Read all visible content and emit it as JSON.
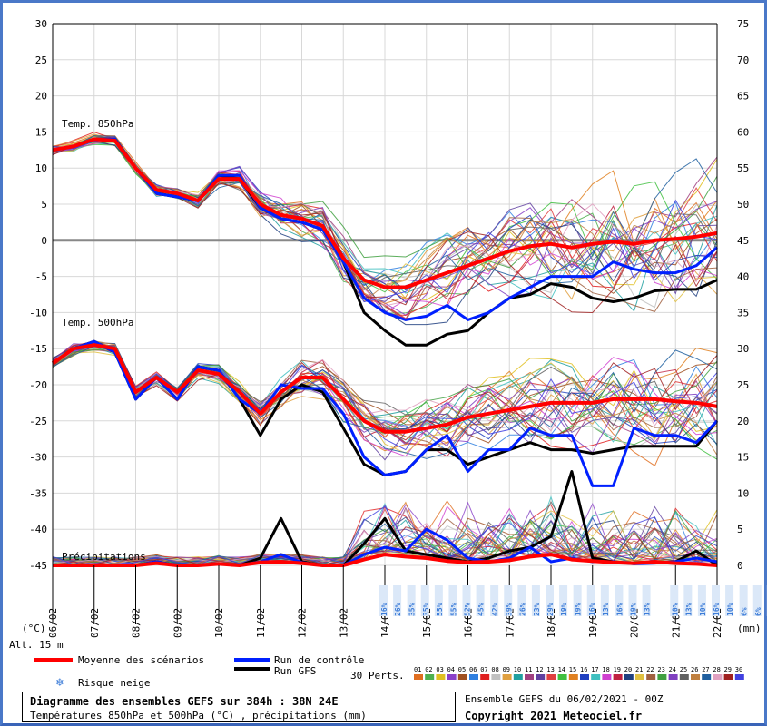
{
  "chart_data": {
    "type": "line",
    "x_tick_labels": [
      "06/02",
      "07/02",
      "08/02",
      "09/02",
      "10/02",
      "11/02",
      "12/02",
      "13/02",
      "14/02",
      "15/02",
      "16/02",
      "17/02",
      "18/02",
      "19/02",
      "20/02",
      "21/02",
      "22/02"
    ],
    "y_left_ticks": [
      30,
      25,
      20,
      15,
      10,
      5,
      0,
      -5,
      -10,
      -15,
      -20,
      -25,
      -30,
      -35,
      -40,
      -45
    ],
    "y_right_ticks": [
      75,
      70,
      65,
      60,
      55,
      50,
      45,
      40,
      35,
      30,
      25,
      20,
      15,
      10,
      5,
      0
    ],
    "y_left_range": [
      -45,
      30
    ],
    "y_right_range": [
      0,
      75
    ],
    "left_unit": "(°C)",
    "right_unit": "(mm)",
    "altitude_label": "Alt. 15 m",
    "panel_labels": {
      "t850": "Temp. 850hPa",
      "t500": "Temp. 500hPa",
      "precip": "Précipitations"
    },
    "t850": {
      "x": [
        0,
        0.5,
        1,
        1.5,
        2,
        2.5,
        3,
        3.5,
        4,
        4.5,
        5,
        5.5,
        6,
        6.5,
        7,
        7.5,
        8,
        8.5,
        9,
        9.5,
        10,
        10.5,
        11,
        11.5,
        12,
        12.5,
        13,
        13.5,
        14,
        14.5,
        15,
        15.5,
        16
      ],
      "mean": [
        12.5,
        13,
        14,
        13.8,
        10,
        7,
        6.5,
        5.5,
        8.5,
        8.5,
        5,
        3.5,
        3,
        2,
        -2.5,
        -5.5,
        -6.5,
        -6.5,
        -5.5,
        -4.5,
        -3.5,
        -2.5,
        -1.5,
        -0.8,
        -0.5,
        -1,
        -0.5,
        -0.2,
        -0.5,
        0,
        0.2,
        0.5,
        1
      ],
      "control": [
        12.5,
        13,
        14,
        14,
        10,
        6.5,
        6,
        5.5,
        9,
        9,
        4.5,
        3,
        2.5,
        1.5,
        -3,
        -8,
        -10,
        -11,
        -10.5,
        -9,
        -11,
        -10,
        -8,
        -6.5,
        -5,
        -5,
        -5,
        -3,
        -4,
        -4.5,
        -4.5,
        -3.5,
        -1
      ],
      "gfs": [
        12.5,
        13,
        14,
        14,
        10,
        6.5,
        6,
        5.5,
        9,
        8.5,
        4.5,
        3,
        2.5,
        1.5,
        -3,
        -10,
        -12.5,
        -14.5,
        -14.5,
        -13,
        -12.5,
        -10,
        -8,
        -7.5,
        -6,
        -6.5,
        -8,
        -8.5,
        -8,
        -7,
        -6.8,
        -6.8,
        -5.5
      ]
    },
    "t500": {
      "x": [
        0,
        0.5,
        1,
        1.5,
        2,
        2.5,
        3,
        3.5,
        4,
        4.5,
        5,
        5.5,
        6,
        6.5,
        7,
        7.5,
        8,
        8.5,
        9,
        9.5,
        10,
        10.5,
        11,
        11.5,
        12,
        12.5,
        13,
        13.5,
        14,
        14.5,
        15,
        15.5,
        16
      ],
      "mean": [
        -17,
        -15,
        -14.5,
        -15,
        -21,
        -19,
        -21,
        -18,
        -18.5,
        -21,
        -24,
        -21,
        -19,
        -19,
        -22,
        -25,
        -26.5,
        -26.5,
        -26,
        -25.5,
        -24.5,
        -24,
        -23.5,
        -23,
        -22.5,
        -22.5,
        -22.5,
        -22,
        -22,
        -22,
        -22.3,
        -22.5,
        -23
      ],
      "control": [
        -17,
        -15,
        -14,
        -15.5,
        -22,
        -19,
        -22,
        -17.5,
        -18,
        -22,
        -24,
        -20,
        -20.5,
        -20.5,
        -24,
        -30,
        -32.5,
        -32,
        -29,
        -27,
        -32,
        -29,
        -29,
        -26,
        -27,
        -27,
        -34,
        -34,
        -26,
        -27,
        -27,
        -28,
        -25
      ],
      "gfs": [
        -17,
        -15,
        -14,
        -15.5,
        -22,
        -19,
        -22,
        -17.5,
        -18,
        -22,
        -27,
        -22,
        -20,
        -21,
        -26,
        -31,
        -32.5,
        -32,
        -29,
        -29,
        -31,
        -30,
        -29,
        -28,
        -29,
        -29,
        -29.5,
        -29,
        -28.5,
        -28.5,
        -28.5,
        -28.5,
        -25
      ]
    },
    "precip": {
      "x": [
        0,
        0.5,
        1,
        1.5,
        2,
        2.5,
        3,
        3.5,
        4,
        4.5,
        5,
        5.5,
        6,
        6.5,
        7,
        7.5,
        8,
        8.5,
        9,
        9.5,
        10,
        10.5,
        11,
        11.5,
        12,
        12.5,
        13,
        13.5,
        14,
        14.5,
        15,
        15.5,
        16
      ],
      "mean": [
        0,
        0,
        0,
        0,
        0,
        0.3,
        0,
        0,
        0.2,
        0,
        0.4,
        0.5,
        0.3,
        0,
        0,
        0.8,
        1.5,
        1.2,
        1,
        0.6,
        0.4,
        0.5,
        0.7,
        1.2,
        1.5,
        0.8,
        0.6,
        0.4,
        0.3,
        0.5,
        0.3,
        0.2,
        0
      ],
      "control": [
        0,
        0,
        0,
        0,
        0,
        0.5,
        0,
        0,
        0.2,
        0,
        0.5,
        1.5,
        0.4,
        0,
        0,
        1.5,
        2.5,
        2,
        5,
        3.5,
        1,
        0.5,
        1,
        2.5,
        0.5,
        1,
        0.5,
        0.5,
        0.2,
        0.3,
        0.5,
        1,
        0.5
      ],
      "gfs": [
        0,
        0,
        0,
        0,
        0,
        0.5,
        0,
        0,
        0.2,
        0,
        1,
        6.5,
        0.5,
        0,
        0,
        3,
        6.5,
        2,
        1.5,
        1,
        0.5,
        1,
        2,
        2.5,
        4,
        13,
        1,
        0.5,
        0.3,
        0.4,
        0.5,
        2,
        0
      ]
    },
    "snow_risk": [
      {
        "x": 8.0,
        "label": "16%"
      },
      {
        "x": 8.33,
        "label": "26%"
      },
      {
        "x": 8.67,
        "label": "35%"
      },
      {
        "x": 9.0,
        "label": "35%"
      },
      {
        "x": 9.33,
        "label": "55%"
      },
      {
        "x": 9.67,
        "label": "55%"
      },
      {
        "x": 10.0,
        "label": "52%"
      },
      {
        "x": 10.33,
        "label": "45%"
      },
      {
        "x": 10.67,
        "label": "42%"
      },
      {
        "x": 11.0,
        "label": "39%"
      },
      {
        "x": 11.33,
        "label": "26%"
      },
      {
        "x": 11.67,
        "label": "23%"
      },
      {
        "x": 12.0,
        "label": "29%"
      },
      {
        "x": 12.33,
        "label": "19%"
      },
      {
        "x": 12.67,
        "label": "19%"
      },
      {
        "x": 13.0,
        "label": "16%"
      },
      {
        "x": 13.33,
        "label": "13%"
      },
      {
        "x": 13.67,
        "label": "16%"
      },
      {
        "x": 14.0,
        "label": "19%"
      },
      {
        "x": 14.33,
        "label": "13%"
      },
      {
        "x": 15.0,
        "label": "10%"
      },
      {
        "x": 15.33,
        "label": "13%"
      },
      {
        "x": 15.67,
        "label": "10%"
      },
      {
        "x": 16.0,
        "label": "16%"
      },
      {
        "x": 16.33,
        "label": "10%"
      },
      {
        "x": 16.67,
        "label": "6%"
      },
      {
        "x": 17.0,
        "label": "6%"
      },
      {
        "x": 17.33,
        "label": "6%"
      }
    ],
    "legend": {
      "mean": "Moyenne des scénarios",
      "control": "Run de contrôle",
      "gfs": "Run GFS",
      "snow": "Risque neige",
      "perts_label": "30 Perts."
    },
    "perturbations": [
      {
        "label": "01",
        "color": "#e06e20"
      },
      {
        "label": "02",
        "color": "#4eb04e"
      },
      {
        "label": "03",
        "color": "#e0c020"
      },
      {
        "label": "04",
        "color": "#8a40c8"
      },
      {
        "label": "05",
        "color": "#a05020"
      },
      {
        "label": "06",
        "color": "#3080e0"
      },
      {
        "label": "07",
        "color": "#e02020"
      },
      {
        "label": "08",
        "color": "#c0c0c0"
      },
      {
        "label": "09",
        "color": "#e0a040"
      },
      {
        "label": "10",
        "color": "#20a0a0"
      },
      {
        "label": "11",
        "color": "#a04080"
      },
      {
        "label": "12",
        "color": "#6040a0"
      },
      {
        "label": "13",
        "color": "#e04040"
      },
      {
        "label": "14",
        "color": "#40c040"
      },
      {
        "label": "15",
        "color": "#e08020"
      },
      {
        "label": "16",
        "color": "#2040c0"
      },
      {
        "label": "17",
        "color": "#40c0c0"
      },
      {
        "label": "18",
        "color": "#d040d0"
      },
      {
        "label": "19",
        "color": "#c02040"
      },
      {
        "label": "20",
        "color": "#204080"
      },
      {
        "label": "21",
        "color": "#e0c040"
      },
      {
        "label": "22",
        "color": "#a06040"
      },
      {
        "label": "23",
        "color": "#40a040"
      },
      {
        "label": "24",
        "color": "#8040c0"
      },
      {
        "label": "25",
        "color": "#606060"
      },
      {
        "label": "26",
        "color": "#c08040"
      },
      {
        "label": "27",
        "color": "#2060a0"
      },
      {
        "label": "28",
        "color": "#e0a0c0"
      },
      {
        "label": "29",
        "color": "#a02020"
      },
      {
        "label": "30",
        "color": "#4040e0"
      }
    ],
    "colors": {
      "mean": "#ff0000",
      "control": "#0020ff",
      "gfs": "#000000",
      "snow": "#3c7cd8",
      "zero_line": "#888888"
    }
  },
  "footer": {
    "title": "Diagramme des ensembles GEFS sur 384h : 38N 24E",
    "subtitle": "Températures 850hPa et 500hPa (°C) , précipitations (mm)",
    "run": "Ensemble GEFS du 06/02/2021 - 00Z",
    "copyright": "Copyright 2021 Meteociel.fr"
  }
}
